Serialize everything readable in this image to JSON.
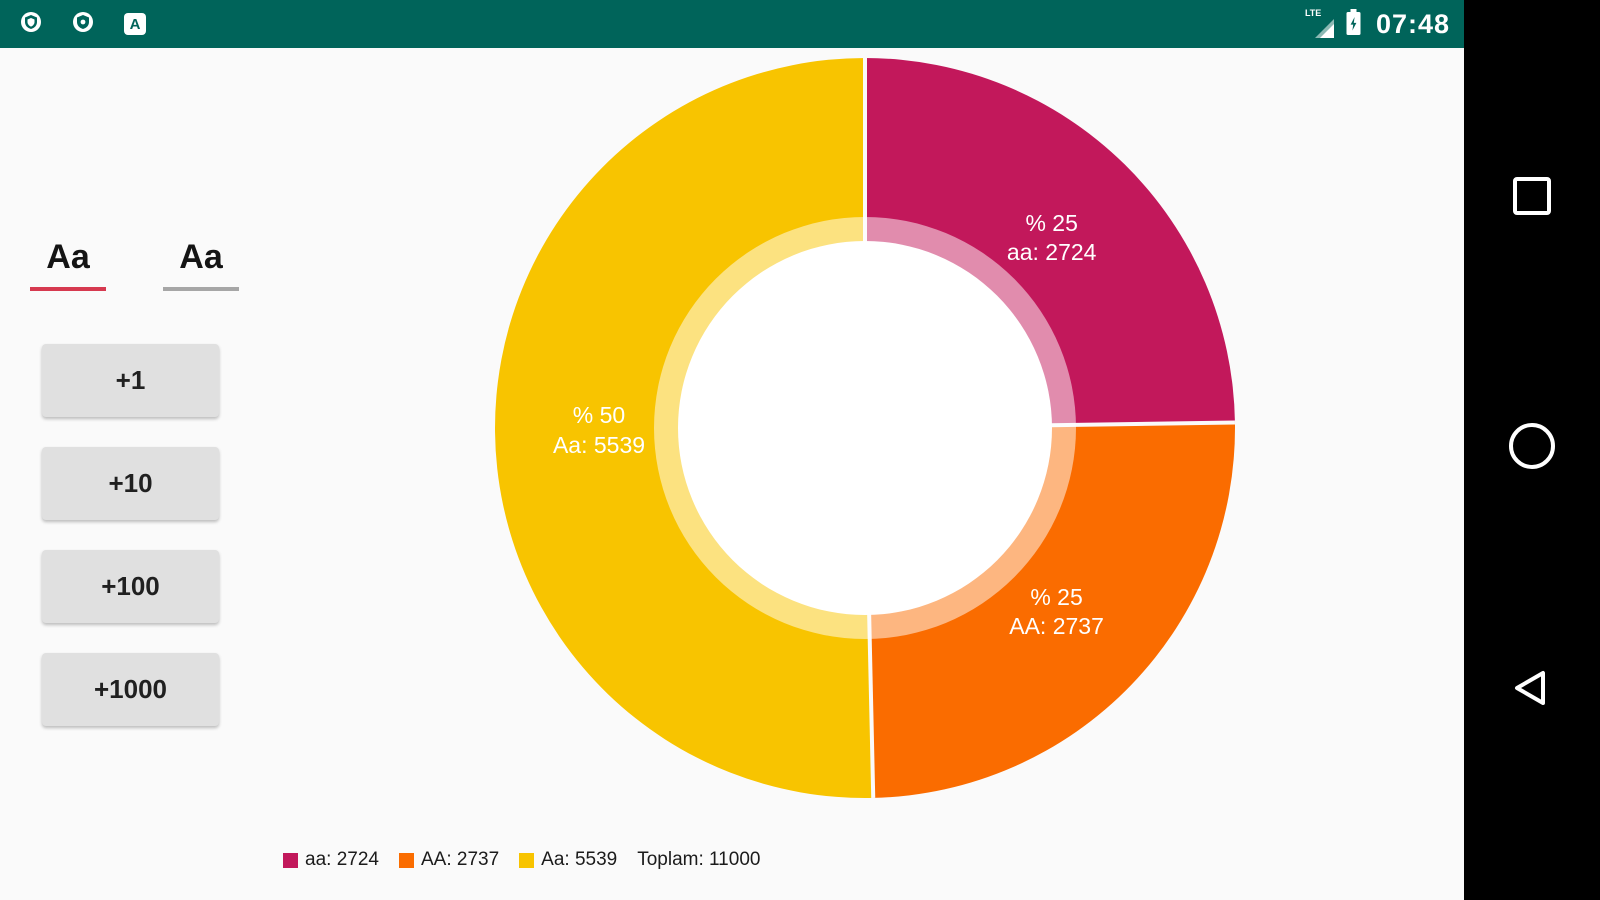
{
  "status_bar": {
    "time": "07:48",
    "carrier": "LTE",
    "notification_letter": "A"
  },
  "tabs": {
    "active_label": "Aa",
    "inactive_label": "Aa"
  },
  "controls": {
    "buttons": [
      {
        "label": "+1"
      },
      {
        "label": "+10"
      },
      {
        "label": "+100"
      },
      {
        "label": "+1000"
      }
    ]
  },
  "chart_data": {
    "type": "pie",
    "donut": true,
    "start_angle_deg": -90,
    "direction": "clockwise",
    "total": 11000,
    "slices": [
      {
        "name": "aa",
        "value": 2724,
        "percent_label": "% 25",
        "value_label": "aa: 2724",
        "color": "#C2185B"
      },
      {
        "name": "AA",
        "value": 2737,
        "percent_label": "% 25",
        "value_label": "AA: 2737",
        "color": "#FA6C00"
      },
      {
        "name": "Aa",
        "value": 5539,
        "percent_label": "% 50",
        "value_label": "Aa: 5539",
        "color": "#F8C400"
      }
    ],
    "legend": [
      {
        "label": "aa: 2724",
        "color": "#C2185B"
      },
      {
        "label": "AA: 2737",
        "color": "#FA6C00"
      },
      {
        "label": "Aa: 5539",
        "color": "#F8C400"
      },
      {
        "label": "Toplam: 11000",
        "color": null
      }
    ],
    "legend_position": "bottom-left",
    "hole_color": "#FFFFFF",
    "transparent_ring_opacity": 0.5,
    "separator_color": "#FAFAFA"
  },
  "theme": {
    "status_bar_bg": "#00645A",
    "nav_bar_bg": "#000000",
    "background": "#FAFAFA",
    "tab_active_underline": "#D6394F",
    "tab_inactive_underline": "#A6A6A6",
    "button_bg": "#E0E0E0"
  }
}
